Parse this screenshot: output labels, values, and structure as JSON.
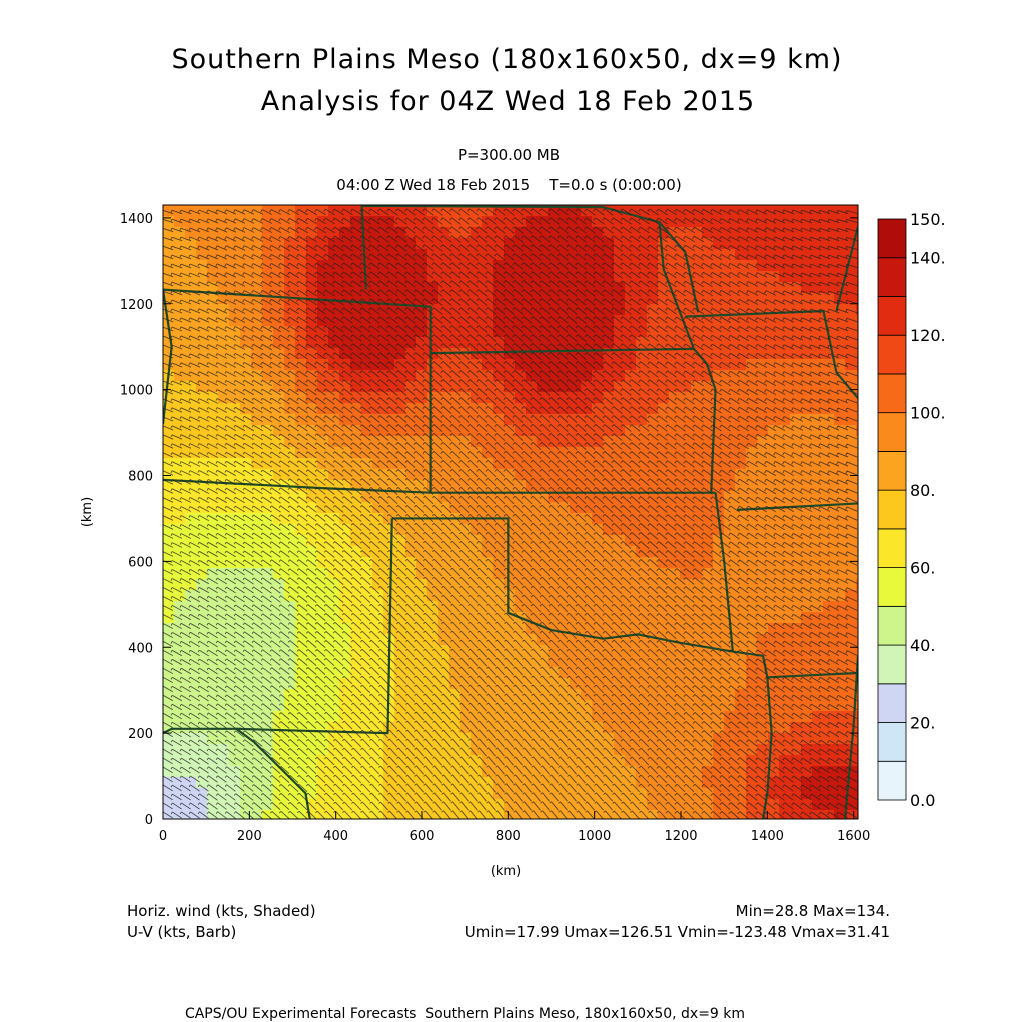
{
  "header": {
    "title_line1": "Southern Plains Meso (180x160x50, dx=9 km)",
    "title_line2": "Analysis for 04Z Wed 18 Feb 2015",
    "level": "P=300.00 MB",
    "valid_time": "04:00 Z Wed 18 Feb 2015    T=0.0 s (0:00:00)"
  },
  "chart_data": {
    "type": "heatmap",
    "field": "Horiz. wind (kts, Shaded)",
    "overlay": "U-V (kts, Barb)",
    "xlabel": "(km)",
    "ylabel": "(km)",
    "xlim": [
      0,
      1610
    ],
    "ylim": [
      0,
      1430
    ],
    "x_ticks": [
      "0",
      "200",
      "400",
      "600",
      "800",
      "1000",
      "1200",
      "1400",
      "1600"
    ],
    "y_ticks": [
      "0",
      "200",
      "400",
      "600",
      "800",
      "1000",
      "1200",
      "1400"
    ],
    "colorbar": {
      "levels": [
        0,
        10,
        20,
        30,
        40,
        50,
        60,
        70,
        80,
        90,
        100,
        110,
        120,
        130,
        140,
        150
      ],
      "labels": [
        "0.0",
        "20.",
        "40.",
        "60.",
        "80.",
        "100.",
        "120.",
        "140.",
        "150."
      ],
      "colors": [
        "#e8f4fb",
        "#cfe6f6",
        "#cfd6f4",
        "#d0f5b6",
        "#cdf58c",
        "#e8f83a",
        "#fbe62a",
        "#fdc81e",
        "#fca420",
        "#fb8a1c",
        "#f76a17",
        "#f04916",
        "#e22c11",
        "#c8170d",
        "#b00c0a"
      ]
    },
    "speed_maxima": [
      {
        "x": 470,
        "y": 1260,
        "speed": 132
      },
      {
        "x": 910,
        "y": 1240,
        "speed": 128
      },
      {
        "x": 1560,
        "y": 60,
        "speed": 134
      }
    ],
    "stats": {
      "min": "Min=28.8",
      "max": "Max=134.",
      "umin": "Umin=17.99",
      "umax": "Umax=126.51",
      "vmin": "Vmin=-123.48",
      "vmax": "Vmax=31.41"
    }
  },
  "legend_left": {
    "line1": "Horiz. wind (kts, Shaded)",
    "line2": "U-V (kts, Barb)"
  },
  "legend_right": {
    "line1": "Min=28.8 Max=134.",
    "line2": "Umin=17.99 Umax=126.51 Vmin=-123.48 Vmax=31.41"
  },
  "footer": "CAPS/OU Experimental Forecasts  Southern Plains Meso, 180x160x50, dx=9 km",
  "colors": {
    "border": "#1f4a2a",
    "barb": "#222222",
    "axis": "#000000"
  }
}
